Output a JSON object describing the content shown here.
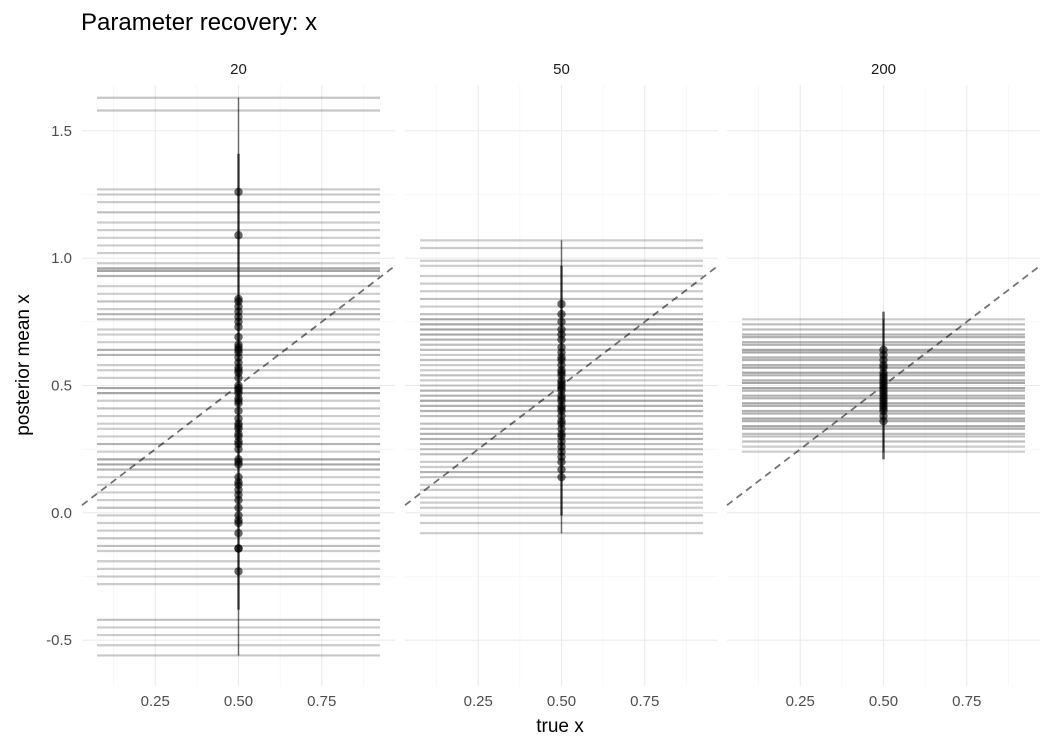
{
  "chart_data": {
    "type": "scatter",
    "title": "Parameter recovery: x",
    "xlabel": "true x",
    "ylabel": "posterior mean x",
    "xlim": [
      0.03,
      0.97
    ],
    "ylim": [
      -0.68,
      1.68
    ],
    "x_ticks": [
      0.25,
      0.5,
      0.75
    ],
    "x_tick_labels": [
      "0.25",
      "0.50",
      "0.75"
    ],
    "y_ticks": [
      -0.5,
      0,
      0.5,
      1,
      1.5
    ],
    "y_tick_labels": [
      "-0.5",
      "0.0",
      "0.5",
      "1.0",
      "1.5"
    ],
    "grid": true,
    "reference_line": "y = x (dashed)",
    "interval_x_range": [
      0.075,
      0.925
    ],
    "panels": [
      {
        "label": "20",
        "points": [
          1.26,
          1.09,
          0.84,
          0.83,
          0.81,
          0.79,
          0.77,
          0.75,
          0.73,
          0.69,
          0.66,
          0.65,
          0.64,
          0.63,
          0.61,
          0.59,
          0.57,
          0.56,
          0.55,
          0.53,
          0.5,
          0.49,
          0.48,
          0.47,
          0.45,
          0.44,
          0.43,
          0.4,
          0.37,
          0.35,
          0.34,
          0.33,
          0.31,
          0.3,
          0.28,
          0.27,
          0.25,
          0.21,
          0.2,
          0.19,
          0.14,
          0.12,
          0.11,
          0.09,
          0.07,
          0.05,
          0.02,
          -0.01,
          -0.03,
          -0.04,
          -0.08,
          -0.14,
          -0.14,
          -0.23
        ],
        "intervals": [
          {
            "y": 1.63,
            "alpha": 0.22
          },
          {
            "y": 1.58,
            "alpha": 0.22
          },
          {
            "y": 1.27,
            "alpha": 0.2
          },
          {
            "y": 1.25,
            "alpha": 0.2
          },
          {
            "y": 1.22,
            "alpha": 0.2
          },
          {
            "y": 1.18,
            "alpha": 0.25
          },
          {
            "y": 1.14,
            "alpha": 0.2
          },
          {
            "y": 1.11,
            "alpha": 0.2
          },
          {
            "y": 1.08,
            "alpha": 0.2
          },
          {
            "y": 1.05,
            "alpha": 0.2
          },
          {
            "y": 1.02,
            "alpha": 0.2
          },
          {
            "y": 0.98,
            "alpha": 0.2
          },
          {
            "y": 0.96,
            "alpha": 0.35
          },
          {
            "y": 0.95,
            "alpha": 0.35
          },
          {
            "y": 0.93,
            "alpha": 0.3
          },
          {
            "y": 0.89,
            "alpha": 0.2
          },
          {
            "y": 0.86,
            "alpha": 0.2
          },
          {
            "y": 0.83,
            "alpha": 0.25
          },
          {
            "y": 0.8,
            "alpha": 0.2
          },
          {
            "y": 0.78,
            "alpha": 0.3
          },
          {
            "y": 0.76,
            "alpha": 0.25
          },
          {
            "y": 0.72,
            "alpha": 0.2
          },
          {
            "y": 0.7,
            "alpha": 0.2
          },
          {
            "y": 0.67,
            "alpha": 0.2
          },
          {
            "y": 0.64,
            "alpha": 0.3
          },
          {
            "y": 0.62,
            "alpha": 0.3
          },
          {
            "y": 0.58,
            "alpha": 0.2
          },
          {
            "y": 0.56,
            "alpha": 0.2
          },
          {
            "y": 0.53,
            "alpha": 0.2
          },
          {
            "y": 0.49,
            "alpha": 0.35
          },
          {
            "y": 0.47,
            "alpha": 0.35
          },
          {
            "y": 0.44,
            "alpha": 0.2
          },
          {
            "y": 0.41,
            "alpha": 0.25
          },
          {
            "y": 0.38,
            "alpha": 0.2
          },
          {
            "y": 0.35,
            "alpha": 0.2
          },
          {
            "y": 0.33,
            "alpha": 0.2
          },
          {
            "y": 0.3,
            "alpha": 0.2
          },
          {
            "y": 0.27,
            "alpha": 0.3
          },
          {
            "y": 0.24,
            "alpha": 0.2
          },
          {
            "y": 0.21,
            "alpha": 0.35
          },
          {
            "y": 0.19,
            "alpha": 0.35
          },
          {
            "y": 0.17,
            "alpha": 0.3
          },
          {
            "y": 0.14,
            "alpha": 0.2
          },
          {
            "y": 0.11,
            "alpha": 0.2
          },
          {
            "y": 0.08,
            "alpha": 0.2
          },
          {
            "y": 0.05,
            "alpha": 0.2
          },
          {
            "y": 0.02,
            "alpha": 0.25
          },
          {
            "y": -0.01,
            "alpha": 0.2
          },
          {
            "y": -0.04,
            "alpha": 0.2
          },
          {
            "y": -0.07,
            "alpha": 0.2
          },
          {
            "y": -0.1,
            "alpha": 0.25
          },
          {
            "y": -0.13,
            "alpha": 0.25
          },
          {
            "y": -0.15,
            "alpha": 0.2
          },
          {
            "y": -0.19,
            "alpha": 0.2
          },
          {
            "y": -0.22,
            "alpha": 0.2
          },
          {
            "y": -0.25,
            "alpha": 0.2
          },
          {
            "y": -0.28,
            "alpha": 0.2
          },
          {
            "y": -0.42,
            "alpha": 0.25
          },
          {
            "y": -0.45,
            "alpha": 0.2
          },
          {
            "y": -0.48,
            "alpha": 0.2
          },
          {
            "y": -0.52,
            "alpha": 0.2
          },
          {
            "y": -0.56,
            "alpha": 0.22
          }
        ],
        "spine": [
          -0.56,
          1.63
        ]
      },
      {
        "label": "50",
        "points": [
          0.82,
          0.78,
          0.75,
          0.72,
          0.7,
          0.68,
          0.65,
          0.63,
          0.61,
          0.6,
          0.58,
          0.56,
          0.55,
          0.54,
          0.52,
          0.51,
          0.5,
          0.49,
          0.48,
          0.46,
          0.45,
          0.44,
          0.42,
          0.41,
          0.4,
          0.38,
          0.36,
          0.35,
          0.33,
          0.31,
          0.3,
          0.28,
          0.26,
          0.24,
          0.22,
          0.2,
          0.17,
          0.14
        ],
        "intervals": [
          {
            "y": 1.07,
            "alpha": 0.2
          },
          {
            "y": 1.04,
            "alpha": 0.2
          },
          {
            "y": 0.99,
            "alpha": 0.2
          },
          {
            "y": 0.97,
            "alpha": 0.2
          },
          {
            "y": 0.93,
            "alpha": 0.2
          },
          {
            "y": 0.9,
            "alpha": 0.2
          },
          {
            "y": 0.87,
            "alpha": 0.2
          },
          {
            "y": 0.84,
            "alpha": 0.25
          },
          {
            "y": 0.81,
            "alpha": 0.2
          },
          {
            "y": 0.78,
            "alpha": 0.25
          },
          {
            "y": 0.76,
            "alpha": 0.35
          },
          {
            "y": 0.74,
            "alpha": 0.35
          },
          {
            "y": 0.72,
            "alpha": 0.35
          },
          {
            "y": 0.7,
            "alpha": 0.35
          },
          {
            "y": 0.68,
            "alpha": 0.3
          },
          {
            "y": 0.66,
            "alpha": 0.25
          },
          {
            "y": 0.64,
            "alpha": 0.25
          },
          {
            "y": 0.62,
            "alpha": 0.2
          },
          {
            "y": 0.6,
            "alpha": 0.25
          },
          {
            "y": 0.58,
            "alpha": 0.2
          },
          {
            "y": 0.56,
            "alpha": 0.2
          },
          {
            "y": 0.54,
            "alpha": 0.25
          },
          {
            "y": 0.52,
            "alpha": 0.2
          },
          {
            "y": 0.5,
            "alpha": 0.2
          },
          {
            "y": 0.48,
            "alpha": 0.3
          },
          {
            "y": 0.46,
            "alpha": 0.3
          },
          {
            "y": 0.44,
            "alpha": 0.35
          },
          {
            "y": 0.42,
            "alpha": 0.3
          },
          {
            "y": 0.4,
            "alpha": 0.3
          },
          {
            "y": 0.38,
            "alpha": 0.25
          },
          {
            "y": 0.35,
            "alpha": 0.25
          },
          {
            "y": 0.33,
            "alpha": 0.25
          },
          {
            "y": 0.31,
            "alpha": 0.3
          },
          {
            "y": 0.29,
            "alpha": 0.3
          },
          {
            "y": 0.27,
            "alpha": 0.25
          },
          {
            "y": 0.25,
            "alpha": 0.25
          },
          {
            "y": 0.23,
            "alpha": 0.25
          },
          {
            "y": 0.2,
            "alpha": 0.2
          },
          {
            "y": 0.18,
            "alpha": 0.2
          },
          {
            "y": 0.16,
            "alpha": 0.3
          },
          {
            "y": 0.14,
            "alpha": 0.25
          },
          {
            "y": 0.11,
            "alpha": 0.2
          },
          {
            "y": 0.09,
            "alpha": 0.2
          },
          {
            "y": 0.06,
            "alpha": 0.2
          },
          {
            "y": 0.04,
            "alpha": 0.2
          },
          {
            "y": 0.02,
            "alpha": 0.2
          },
          {
            "y": -0.01,
            "alpha": 0.2
          },
          {
            "y": -0.04,
            "alpha": 0.2
          },
          {
            "y": -0.08,
            "alpha": 0.2
          }
        ],
        "spine": [
          -0.08,
          1.07
        ]
      },
      {
        "label": "200",
        "points": [
          0.64,
          0.62,
          0.6,
          0.58,
          0.57,
          0.55,
          0.54,
          0.53,
          0.52,
          0.51,
          0.5,
          0.49,
          0.48,
          0.47,
          0.46,
          0.45,
          0.44,
          0.43,
          0.42,
          0.41,
          0.4,
          0.38,
          0.36
        ],
        "intervals": [
          {
            "y": 0.76,
            "alpha": 0.2
          },
          {
            "y": 0.74,
            "alpha": 0.25
          },
          {
            "y": 0.72,
            "alpha": 0.25
          },
          {
            "y": 0.7,
            "alpha": 0.3
          },
          {
            "y": 0.69,
            "alpha": 0.3
          },
          {
            "y": 0.67,
            "alpha": 0.3
          },
          {
            "y": 0.66,
            "alpha": 0.3
          },
          {
            "y": 0.64,
            "alpha": 0.35
          },
          {
            "y": 0.63,
            "alpha": 0.35
          },
          {
            "y": 0.61,
            "alpha": 0.3
          },
          {
            "y": 0.6,
            "alpha": 0.3
          },
          {
            "y": 0.58,
            "alpha": 0.3
          },
          {
            "y": 0.57,
            "alpha": 0.35
          },
          {
            "y": 0.55,
            "alpha": 0.35
          },
          {
            "y": 0.54,
            "alpha": 0.3
          },
          {
            "y": 0.52,
            "alpha": 0.3
          },
          {
            "y": 0.51,
            "alpha": 0.35
          },
          {
            "y": 0.49,
            "alpha": 0.35
          },
          {
            "y": 0.48,
            "alpha": 0.3
          },
          {
            "y": 0.46,
            "alpha": 0.3
          },
          {
            "y": 0.45,
            "alpha": 0.3
          },
          {
            "y": 0.43,
            "alpha": 0.35
          },
          {
            "y": 0.42,
            "alpha": 0.3
          },
          {
            "y": 0.4,
            "alpha": 0.3
          },
          {
            "y": 0.39,
            "alpha": 0.3
          },
          {
            "y": 0.37,
            "alpha": 0.35
          },
          {
            "y": 0.36,
            "alpha": 0.3
          },
          {
            "y": 0.34,
            "alpha": 0.35
          },
          {
            "y": 0.33,
            "alpha": 0.3
          },
          {
            "y": 0.31,
            "alpha": 0.25
          },
          {
            "y": 0.3,
            "alpha": 0.25
          },
          {
            "y": 0.28,
            "alpha": 0.25
          },
          {
            "y": 0.26,
            "alpha": 0.2
          },
          {
            "y": 0.24,
            "alpha": 0.2
          }
        ],
        "spine": [
          0.24,
          0.76
        ]
      }
    ]
  }
}
